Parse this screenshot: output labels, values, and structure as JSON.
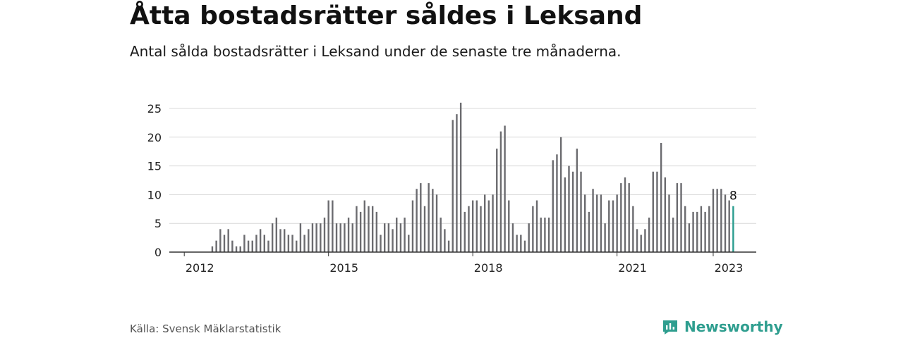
{
  "header": {
    "title": "Åtta bostadsrätter såldes i Leksand",
    "subtitle": "Antal sålda bostadsrätter i Leksand under de senaste tre månaderna."
  },
  "footer": {
    "source": "Källa: Svensk Mäklarstatistik",
    "brand": "Newsworthy"
  },
  "colors": {
    "bar": "#6b6b6f",
    "highlight": "#2a9d8f",
    "grid": "#d9d9d9",
    "axis": "#333333",
    "brand": "#2f9e8f"
  },
  "chart_data": {
    "type": "bar",
    "x_start": "2012-01",
    "x_end": "2023-01",
    "xticks": [
      "2012",
      "2015",
      "2018",
      "2021",
      "2023"
    ],
    "yticks": [
      0,
      5,
      10,
      15,
      20,
      25
    ],
    "ylim": [
      0,
      26
    ],
    "grid": true,
    "highlight_label": "8",
    "series": [
      {
        "values": [
          0,
          0,
          0,
          0,
          0,
          0,
          0,
          1,
          2,
          4,
          3,
          4,
          2,
          1,
          1,
          3,
          2,
          2,
          3,
          4,
          3,
          2,
          5,
          6,
          4,
          4,
          3,
          3,
          2,
          5,
          3,
          4,
          5,
          5,
          5,
          6,
          9,
          9,
          5,
          5,
          5,
          6,
          5,
          8,
          7,
          9,
          8,
          8,
          7,
          3,
          5,
          5,
          4,
          6,
          5,
          6,
          3,
          9,
          11,
          12,
          8,
          12,
          11,
          10,
          6,
          4,
          2,
          23,
          24,
          26,
          7,
          8,
          9,
          9,
          8,
          10,
          9,
          10,
          18,
          21,
          22,
          9,
          5,
          3,
          3,
          2,
          5,
          8,
          9,
          6,
          6,
          6,
          16,
          17,
          20,
          13,
          15,
          14,
          18,
          14,
          10,
          7,
          11,
          10,
          10,
          5,
          9,
          9,
          10,
          12,
          13,
          12,
          8,
          4,
          3,
          4,
          6,
          14,
          14,
          19,
          13,
          10,
          6,
          12,
          12,
          8,
          5,
          7,
          7,
          8,
          7,
          8,
          11,
          11,
          11,
          10,
          9,
          8
        ]
      }
    ]
  }
}
